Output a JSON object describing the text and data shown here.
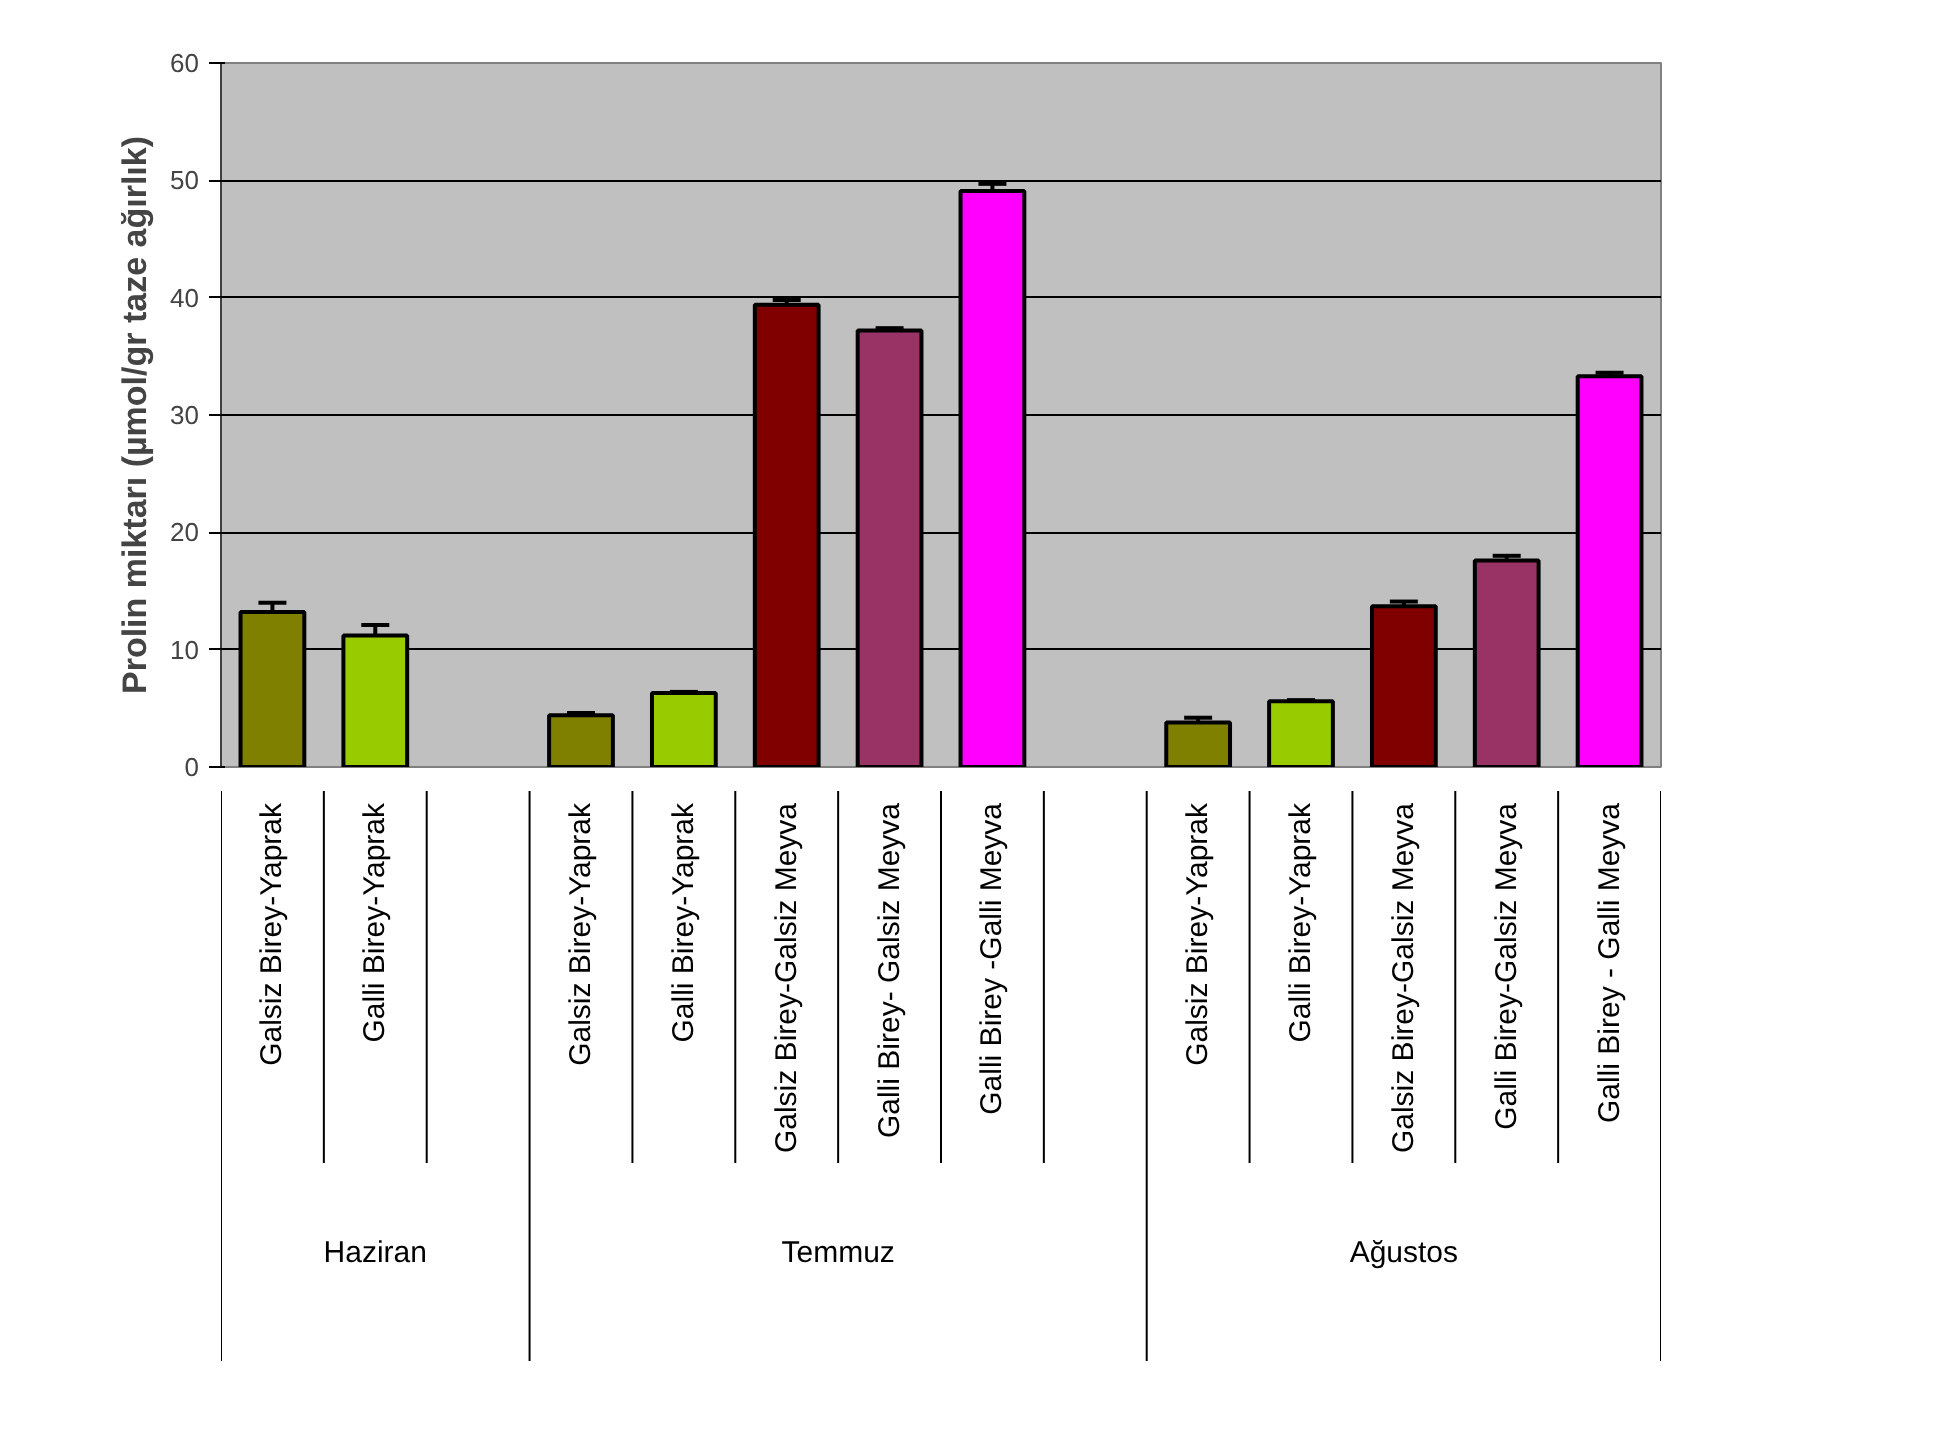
{
  "chart_data": {
    "type": "bar",
    "ylabel": "Prolin miktarı (µmol/gr taze ağırlık)",
    "categories": [
      "Galsiz Birey-Yaprak",
      "Galli Birey-Yaprak",
      null,
      "Galsiz Birey-Yaprak",
      "Galli Birey-Yaprak",
      "Galsiz Birey-Galsiz Meyva",
      "Galli Birey- Galsiz Meyva",
      "Galli Birey -Galli Meyva",
      null,
      "Galsiz Birey-Yaprak",
      "Galli Birey-Yaprak",
      "Galsiz Birey-Galsiz Meyva",
      "Galli Birey-Galsiz Meyva",
      "Galli Birey - Galli Meyva"
    ],
    "values": [
      13.2,
      11.2,
      null,
      4.4,
      6.3,
      39.4,
      37.2,
      49.1,
      null,
      3.8,
      5.6,
      13.7,
      17.6,
      33.3
    ],
    "errors": [
      0.8,
      0.9,
      null,
      0.2,
      0.1,
      0.4,
      0.2,
      0.6,
      null,
      0.4,
      0.1,
      0.4,
      0.4,
      0.3
    ],
    "colors": [
      "#808000",
      "#99cc00",
      null,
      "#808000",
      "#99cc00",
      "#800000",
      "#993366",
      "#ff00ff",
      null,
      "#808000",
      "#99cc00",
      "#800000",
      "#993366",
      "#ff00ff"
    ],
    "annotations": [
      "Haziran",
      "Temmuz",
      "Ağustos"
    ],
    "ylim": [
      0,
      60
    ],
    "yticks": [
      0,
      10,
      20,
      30,
      40,
      50,
      60
    ],
    "grid": "y"
  }
}
